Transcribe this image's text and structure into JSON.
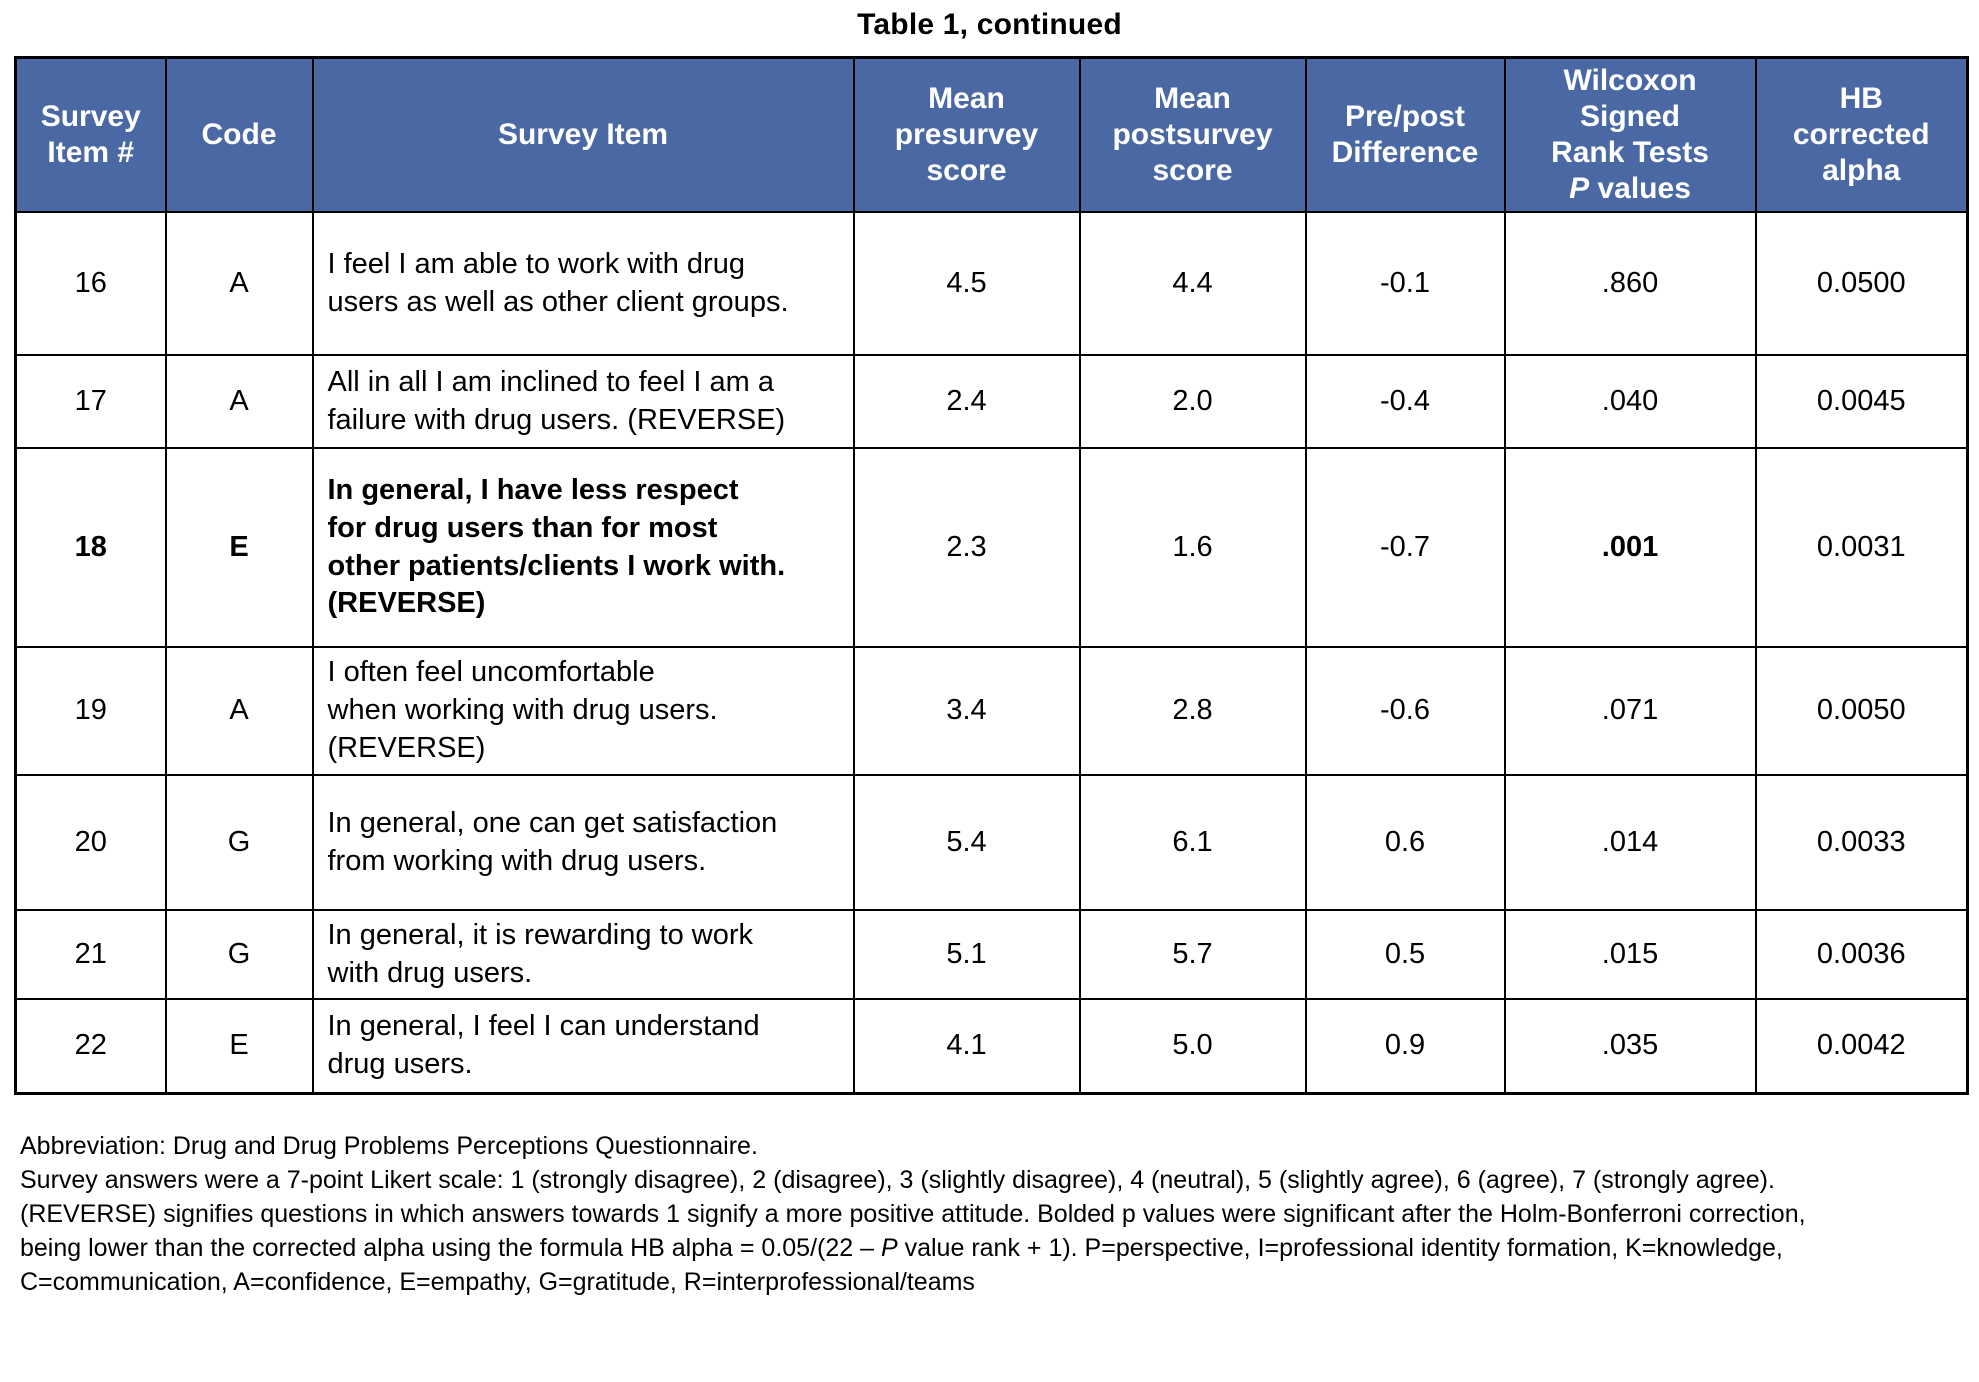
{
  "title": "Table 1, continued",
  "colors": {
    "header_background": "#4a69a4",
    "header_text": "#ffffff",
    "border": "#000000"
  },
  "table": {
    "headers": [
      {
        "segments": [
          {
            "t": "Survey\nItem #"
          }
        ]
      },
      {
        "segments": [
          {
            "t": "Code"
          }
        ]
      },
      {
        "segments": [
          {
            "t": "Survey Item"
          }
        ]
      },
      {
        "segments": [
          {
            "t": "Mean\npresurvey\nscore"
          }
        ]
      },
      {
        "segments": [
          {
            "t": "Mean\npostsurvey\nscore"
          }
        ]
      },
      {
        "segments": [
          {
            "t": "Pre/post\nDifference"
          }
        ]
      },
      {
        "segments": [
          {
            "t": "Wilcoxon\nSigned\nRank Tests\n"
          },
          {
            "t": "P",
            "i": true
          },
          {
            "t": " values"
          }
        ]
      },
      {
        "segments": [
          {
            "t": "HB\ncorrected\nalpha"
          }
        ]
      }
    ],
    "rows": [
      {
        "item": "16",
        "code": "A",
        "text": "I feel I am able to work with drug\nusers as well as other client groups.",
        "pre": "4.5",
        "post": "4.4",
        "diff": "-0.1",
        "p": ".860",
        "alpha": "0.0500",
        "emphasis": false
      },
      {
        "item": "17",
        "code": "A",
        "text": "All in all I am inclined to feel I am a\nfailure with drug users. (REVERSE)",
        "pre": "2.4",
        "post": "2.0",
        "diff": "-0.4",
        "p": ".040",
        "alpha": "0.0045",
        "emphasis": false
      },
      {
        "item": "18",
        "code": "E",
        "text": "In general, I have less respect\nfor drug users than for most\nother patients/clients I work with.\n(REVERSE)",
        "pre": "2.3",
        "post": "1.6",
        "diff": "-0.7",
        "p": ".001",
        "alpha": "0.0031",
        "emphasis": true
      },
      {
        "item": "19",
        "code": "A",
        "text": "I often feel uncomfortable\nwhen working with drug users.\n(REVERSE)",
        "pre": "3.4",
        "post": "2.8",
        "diff": "-0.6",
        "p": ".071",
        "alpha": "0.0050",
        "emphasis": false
      },
      {
        "item": "20",
        "code": "G",
        "text": "In general, one can get satisfaction\nfrom working with drug users.",
        "pre": "5.4",
        "post": "6.1",
        "diff": "0.6",
        "p": ".014",
        "alpha": "0.0033",
        "emphasis": false
      },
      {
        "item": "21",
        "code": "G",
        "text": "In general, it is rewarding to work\nwith drug users.",
        "pre": "5.1",
        "post": "5.7",
        "diff": "0.5",
        "p": ".015",
        "alpha": "0.0036",
        "emphasis": false
      },
      {
        "item": "22",
        "code": "E",
        "text": "In general, I feel I can understand\ndrug users.",
        "pre": "4.1",
        "post": "5.0",
        "diff": "0.9",
        "p": ".035",
        "alpha": "0.0042",
        "emphasis": false
      }
    ]
  },
  "footnotes": [
    {
      "segments": [
        {
          "t": "Abbreviation: Drug and Drug Problems Perceptions Questionnaire."
        }
      ]
    },
    {
      "segments": [
        {
          "t": "Survey answers were a 7-point Likert scale: 1 (strongly disagree), 2 (disagree), 3 (slightly disagree), 4 (neutral), 5 (slightly agree), 6 (agree), 7 (strongly agree)."
        }
      ]
    },
    {
      "segments": [
        {
          "t": "(REVERSE) signifies questions in which answers towards 1 signify a more positive attitude. Bolded p values were significant after the Holm-Bonferroni correction,"
        }
      ]
    },
    {
      "segments": [
        {
          "t": "being lower than the corrected alpha using the formula HB alpha = 0.05/(22 – "
        },
        {
          "t": "P",
          "i": true
        },
        {
          "t": " value rank + 1). P=perspective, I=professional identity formation, K=knowledge,"
        }
      ]
    },
    {
      "segments": [
        {
          "t": "C=communication, A=confidence, E=empathy, G=gratitude, R=interprofessional/teams"
        }
      ]
    }
  ]
}
